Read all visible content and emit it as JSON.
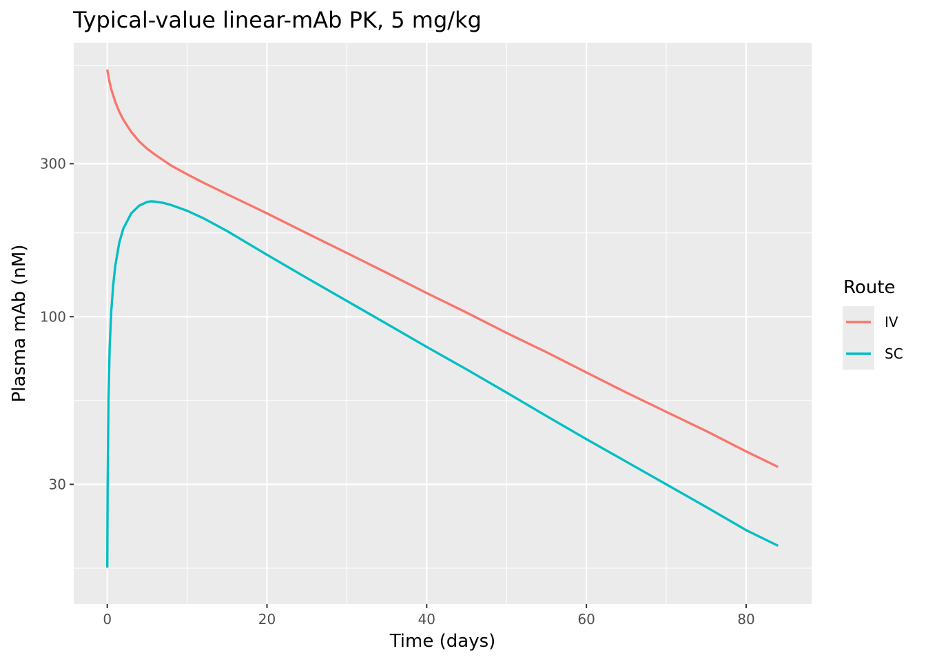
{
  "chart_data": {
    "type": "line",
    "title": "Typical-value linear-mAb PK, 5 mg/kg",
    "xlabel": "Time (days)",
    "ylabel": "Plasma mAb (nM)",
    "xlim": [
      -4.2,
      88.2
    ],
    "ylim": [
      12.7,
      715
    ],
    "yscale": "log10",
    "x_ticks": [
      0,
      20,
      40,
      60,
      80
    ],
    "x_tick_labels": [
      "0",
      "20",
      "40",
      "60",
      "80"
    ],
    "y_ticks": [
      30,
      100,
      300
    ],
    "y_tick_labels": [
      "30",
      "100",
      "300"
    ],
    "grid": true,
    "legend": {
      "title": "Route",
      "position": "right"
    },
    "series": [
      {
        "name": "IV",
        "color": "#F8766D",
        "x": [
          0,
          0.25,
          0.5,
          1,
          1.5,
          2,
          3,
          4,
          5,
          6,
          8,
          10,
          12,
          15,
          20,
          25,
          30,
          35,
          40,
          45,
          50,
          55,
          60,
          65,
          70,
          75,
          80,
          84
        ],
        "y": [
          590,
          545,
          512,
          468,
          436,
          412,
          377,
          352,
          334,
          320,
          296,
          278,
          262,
          241,
          210,
          182,
          158,
          137,
          118.5,
          103,
          89,
          77.5,
          67,
          58,
          50.5,
          44,
          38,
          34
        ]
      },
      {
        "name": "SC",
        "color": "#00BFC4",
        "x": [
          0,
          0.05,
          0.15,
          0.3,
          0.5,
          0.75,
          1,
          1.5,
          2,
          3,
          4,
          5,
          5.5,
          6,
          7,
          8,
          10,
          12,
          15,
          20,
          25,
          30,
          35,
          40,
          45,
          50,
          55,
          60,
          65,
          70,
          75,
          80,
          84
        ],
        "y": [
          16.5,
          30,
          55,
          80,
          104,
          126,
          144,
          170,
          188,
          210,
          222,
          228,
          229,
          228.5,
          226.5,
          223,
          214,
          203,
          185,
          156,
          132,
          112,
          95,
          80.5,
          68.5,
          58,
          49,
          41.5,
          35.3,
          30,
          25.5,
          21.6,
          19.3
        ]
      }
    ]
  }
}
